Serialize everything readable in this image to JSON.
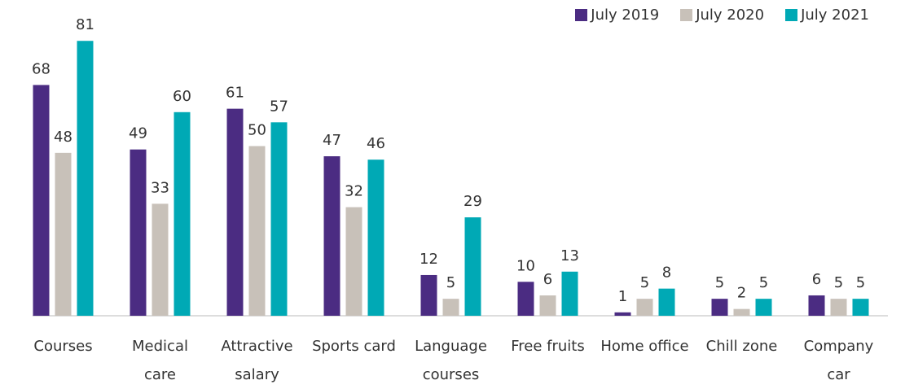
{
  "chart_data": {
    "type": "bar",
    "categories": [
      "Courses",
      "Medical care",
      "Attractive salary",
      "Sports card",
      "Language courses",
      "Free fruits",
      "Home office",
      "Chill zone",
      "Company car"
    ],
    "series": [
      {
        "name": "July 2019",
        "color": "#4b2c82",
        "values": [
          68,
          49,
          61,
          47,
          12,
          10,
          1,
          5,
          6
        ]
      },
      {
        "name": "July 2020",
        "color": "#c8c1b9",
        "values": [
          48,
          33,
          50,
          32,
          5,
          6,
          5,
          2,
          5
        ]
      },
      {
        "name": "July 2021",
        "color": "#00a9b5",
        "values": [
          81,
          60,
          57,
          46,
          29,
          13,
          8,
          5,
          5
        ]
      }
    ],
    "legend": "top-right"
  }
}
